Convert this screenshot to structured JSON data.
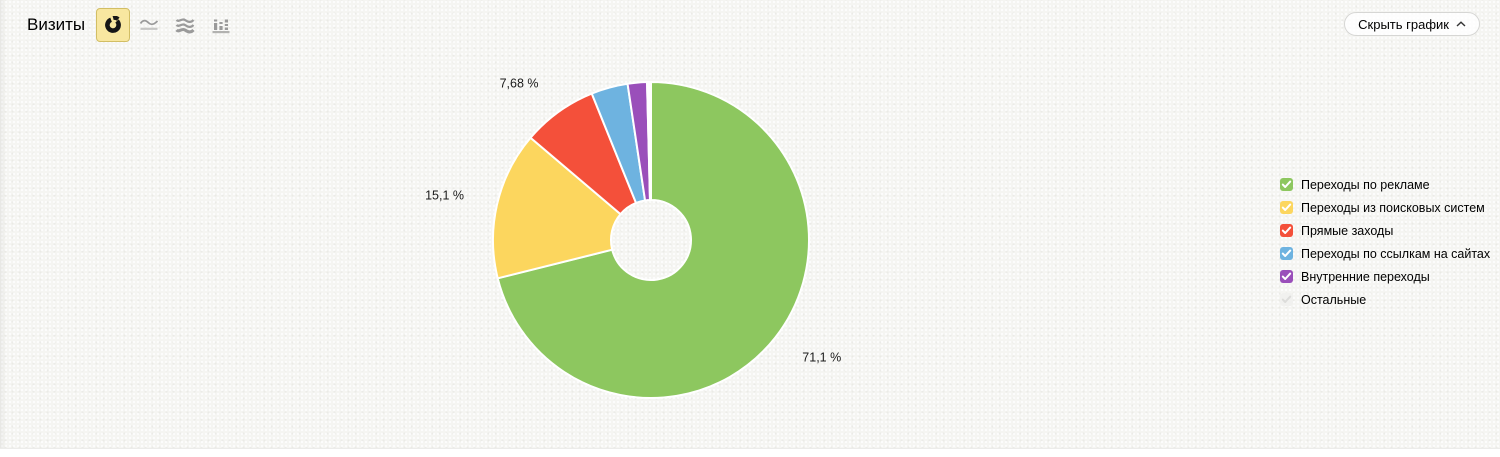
{
  "header": {
    "title": "Визиты",
    "hide_chart_label": "Скрыть график",
    "chart_type_switcher": {
      "selected": "pie",
      "options": [
        "pie",
        "line",
        "area",
        "bars"
      ]
    }
  },
  "icons": {
    "pie-chart-icon": "donut-with-slice",
    "line-chart-icon": "squiggle-over-baseline",
    "stacked-area-icon": "three-waves",
    "bar-chart-icon": "segmented-columns",
    "chevron-up-icon": "^",
    "checkmark-icon": "✓"
  },
  "colors": {
    "background": "#f5f5f2",
    "selected_tab_bg": "#f8e7a0",
    "selected_tab_border": "#d2be64",
    "pill_border": "#d6d6d4",
    "icon_gray": "#9a9a9a"
  },
  "chart_data": {
    "type": "pie",
    "title": "Визиты",
    "donut": true,
    "grid": false,
    "legend_position": "right",
    "start_angle_deg": 0,
    "direction": "clockwise",
    "series": [
      {
        "name": "Переходы по рекламе",
        "value": 71.1,
        "label": "71,1 %",
        "color": "#8dc75f",
        "check_color": "#ffffff"
      },
      {
        "name": "Переходы из поисковых систем",
        "value": 15.1,
        "label": "15,1 %",
        "color": "#fcd65e",
        "check_color": "#ffffff"
      },
      {
        "name": "Прямые заходы",
        "value": 7.68,
        "label": "7,68 %",
        "color": "#f4503a",
        "check_color": "#ffffff"
      },
      {
        "name": "Переходы по ссылкам на сайтах",
        "value": 3.75,
        "label": null,
        "color": "#6eb3e0",
        "check_color": "#ffffff"
      },
      {
        "name": "Внутренние переходы",
        "value": 1.97,
        "label": null,
        "color": "#9a4fba",
        "check_color": "#ffffff"
      },
      {
        "name": "Остальные",
        "value": 0.4,
        "label": null,
        "color": "#ffffff",
        "legend_color": "#f1f1ef",
        "check_color": "#dcdcda"
      }
    ]
  }
}
